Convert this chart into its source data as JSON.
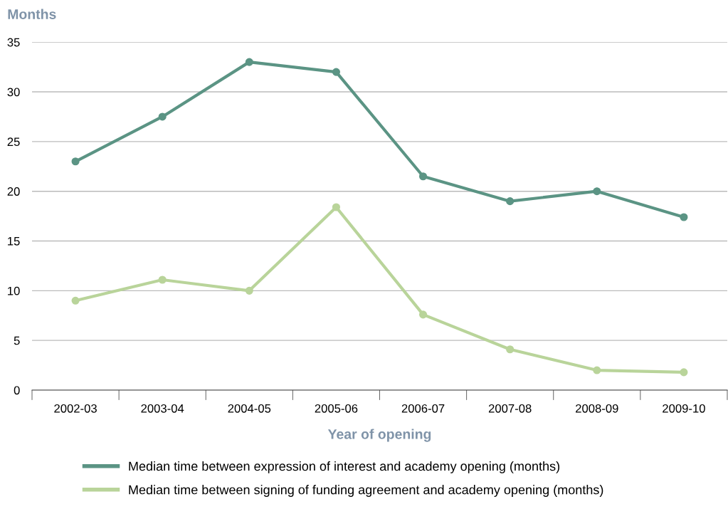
{
  "chart_data": {
    "type": "line",
    "ylabel": "Months",
    "xlabel": "Year of opening",
    "categories": [
      "2002-03",
      "2003-04",
      "2004-05",
      "2005-06",
      "2006-07",
      "2007-08",
      "2008-09",
      "2009-10"
    ],
    "series": [
      {
        "name": "Median time between expression of interest and academy opening (months)",
        "color": "#5b9484",
        "values": [
          23,
          27.5,
          33,
          32,
          21.5,
          19,
          20,
          17.4
        ]
      },
      {
        "name": "Median time between signing of funding agreement and academy opening (months)",
        "color": "#b9d49a",
        "values": [
          9,
          11.1,
          10,
          18.4,
          7.6,
          4.1,
          2,
          1.8
        ]
      }
    ],
    "ylim": [
      0,
      35
    ],
    "yticks": [
      0,
      5,
      10,
      15,
      20,
      25,
      30,
      35
    ],
    "grid": "y",
    "legend": "bottom",
    "marker": "circle",
    "line_style": "solid"
  }
}
